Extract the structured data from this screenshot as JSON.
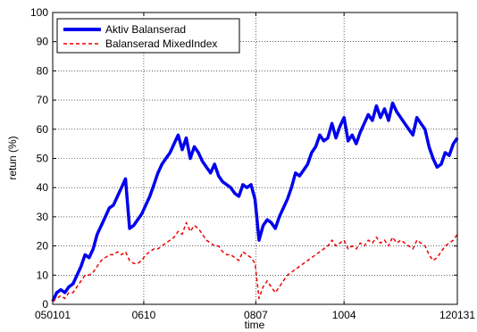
{
  "chart_data": {
    "type": "line",
    "title": "",
    "xlabel": "time",
    "ylabel": "retun (%)",
    "xlim": [
      0,
      100
    ],
    "ylim": [
      0,
      100
    ],
    "grid": true,
    "legend_position": "top-left",
    "x_ticks": [
      {
        "pos": 0,
        "label": "050101"
      },
      {
        "pos": 22.5,
        "label": "0610"
      },
      {
        "pos": 50.2,
        "label": "0807"
      },
      {
        "pos": 72.0,
        "label": "1004"
      },
      {
        "pos": 100,
        "label": "120131"
      }
    ],
    "y_ticks": [
      0,
      10,
      20,
      30,
      40,
      50,
      60,
      70,
      80,
      90,
      100
    ],
    "series": [
      {
        "name": "Aktiv Balanserad",
        "color": "#0000ee",
        "style": "solid",
        "x": [
          0,
          1,
          2,
          3,
          4,
          5,
          6,
          7,
          8,
          9,
          10,
          11,
          12,
          13,
          14,
          15,
          16,
          17,
          18,
          19,
          20,
          21,
          22,
          23,
          24,
          25,
          26,
          27,
          28,
          29,
          30,
          31,
          32,
          33,
          34,
          35,
          36,
          37,
          38,
          39,
          40,
          41,
          42,
          43,
          44,
          45,
          46,
          47,
          48,
          49,
          50,
          51,
          52,
          53,
          54,
          55,
          56,
          57,
          58,
          59,
          60,
          61,
          62,
          63,
          64,
          65,
          66,
          67,
          68,
          69,
          70,
          71,
          72,
          73,
          74,
          75,
          76,
          77,
          78,
          79,
          80,
          81,
          82,
          83,
          84,
          85,
          86,
          87,
          88,
          89,
          90,
          91,
          92,
          93,
          94,
          95,
          96,
          97,
          98,
          99,
          100
        ],
        "values": [
          1,
          4,
          5,
          4,
          6,
          7,
          10,
          13,
          17,
          16,
          19,
          24,
          27,
          30,
          33,
          34,
          37,
          40,
          43,
          26,
          27,
          29,
          31,
          34,
          37,
          41,
          45,
          48,
          50,
          52,
          55,
          58,
          53,
          57,
          50,
          54,
          52,
          49,
          47,
          45,
          48,
          44,
          42,
          41,
          40,
          38,
          37,
          41,
          40,
          41,
          36,
          22,
          27,
          29,
          28,
          26,
          30,
          33,
          36,
          40,
          45,
          44,
          46,
          48,
          52,
          54,
          58,
          56,
          57,
          62,
          57,
          61,
          64,
          56,
          58,
          55,
          59,
          62,
          65,
          63,
          68,
          64,
          67,
          63,
          69,
          66,
          64,
          62,
          60,
          58,
          64,
          62,
          60,
          54,
          50,
          47,
          48,
          52,
          51,
          55,
          57
        ]
      },
      {
        "name": "Balanserad MixedIndex",
        "color": "#ee0000",
        "style": "dashed",
        "x": [
          0,
          1,
          2,
          3,
          4,
          5,
          6,
          7,
          8,
          9,
          10,
          11,
          12,
          13,
          14,
          15,
          16,
          17,
          18,
          19,
          20,
          21,
          22,
          23,
          24,
          25,
          26,
          27,
          28,
          29,
          30,
          31,
          32,
          33,
          34,
          35,
          36,
          37,
          38,
          39,
          40,
          41,
          42,
          43,
          44,
          45,
          46,
          47,
          48,
          49,
          50,
          51,
          52,
          53,
          54,
          55,
          56,
          57,
          58,
          59,
          60,
          61,
          62,
          63,
          64,
          65,
          66,
          67,
          68,
          69,
          70,
          71,
          72,
          73,
          74,
          75,
          76,
          77,
          78,
          79,
          80,
          81,
          82,
          83,
          84,
          85,
          86,
          87,
          88,
          89,
          90,
          91,
          92,
          93,
          94,
          95,
          96,
          97,
          98,
          99,
          100
        ],
        "values": [
          1,
          2,
          3,
          2,
          4,
          4,
          6,
          8,
          10,
          10,
          11,
          13,
          15,
          16,
          17,
          17,
          18,
          17,
          18,
          15,
          14,
          14,
          15,
          17,
          18,
          19,
          19,
          20,
          21,
          22,
          23,
          25,
          24,
          28,
          25,
          27,
          26,
          24,
          22,
          21,
          20,
          20,
          18,
          17,
          17,
          16,
          15,
          18,
          17,
          16,
          14,
          2,
          6,
          8,
          6,
          4,
          6,
          8,
          10,
          11,
          12,
          13,
          14,
          15,
          16,
          17,
          18,
          19,
          20,
          22,
          20,
          21,
          22,
          19,
          20,
          19,
          21,
          20,
          22,
          21,
          23,
          21,
          22,
          20,
          23,
          21,
          22,
          21,
          20,
          19,
          22,
          21,
          20,
          17,
          15,
          16,
          18,
          20,
          21,
          22,
          24
        ]
      }
    ]
  }
}
